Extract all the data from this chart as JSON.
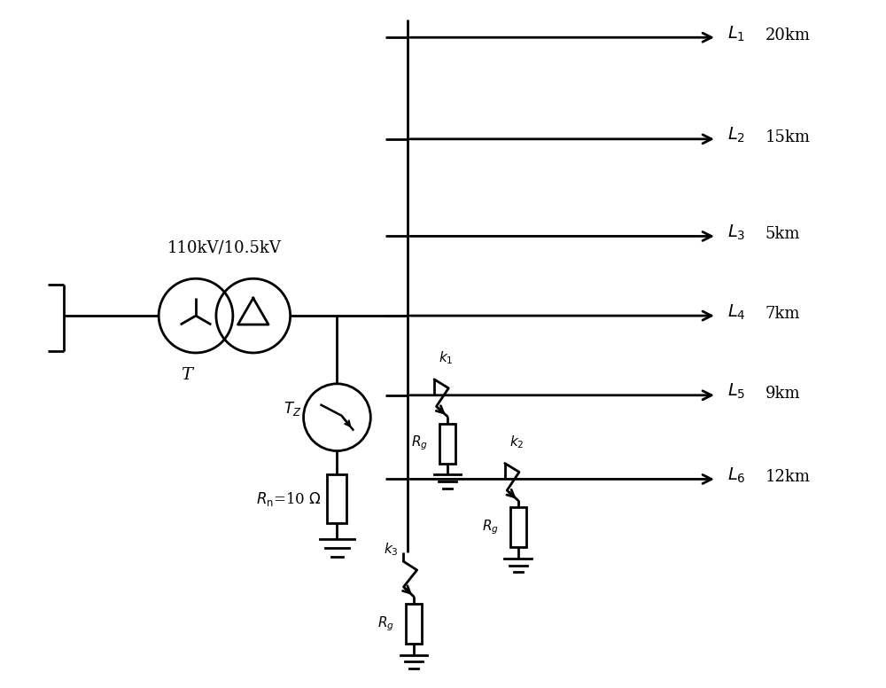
{
  "bg_color": "#ffffff",
  "lc": "#000000",
  "lw": 2.0,
  "fw": 10.0,
  "fh": 7.76,
  "dpi": 100,
  "transformer_label": "110kV/10.5kV",
  "T_label": "T",
  "Tz_label": "T_Z",
  "Rn_label": "R_n=10 Ω",
  "feeder_lines": [
    {
      "label": "L_1",
      "km": "20km"
    },
    {
      "label": "L_2",
      "km": "15km"
    },
    {
      "label": "L_3",
      "km": "5km"
    },
    {
      "label": "L_4",
      "km": "7km"
    },
    {
      "label": "L_5",
      "km": "9km"
    },
    {
      "label": "L_6",
      "km": "12km"
    }
  ]
}
